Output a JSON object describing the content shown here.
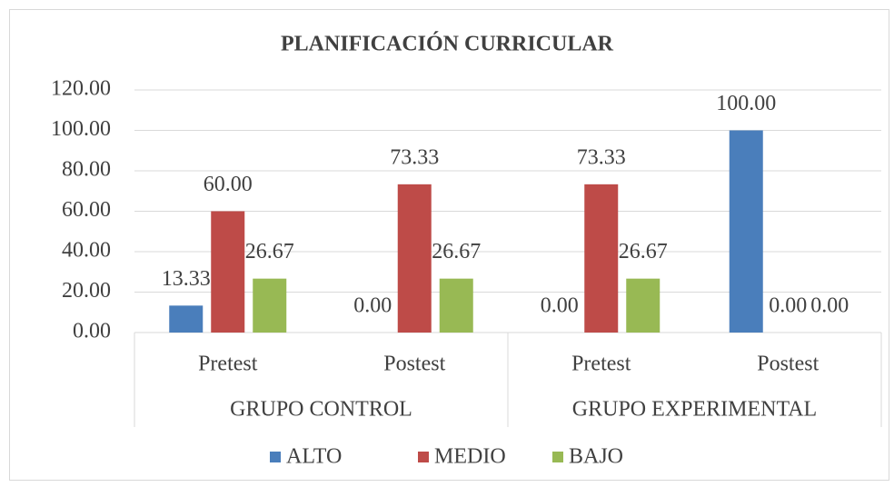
{
  "chart_data": {
    "type": "bar",
    "title": "PLANIFICACIÓN CURRICULAR",
    "categories": [
      "Pretest",
      "Postest",
      "Pretest",
      "Postest"
    ],
    "groups": [
      "GRUPO CONTROL",
      "GRUPO EXPERIMENTAL"
    ],
    "series": [
      {
        "name": "ALTO",
        "color": "#4a7ebb",
        "values": [
          13.33,
          0,
          0,
          100
        ],
        "value_labels": [
          "13.33",
          "0.00",
          "0.00",
          "100.00"
        ]
      },
      {
        "name": "MEDIO",
        "color": "#be4b48",
        "values": [
          60,
          73.33,
          73.33,
          0
        ],
        "value_labels": [
          "60.00",
          "73.33",
          "73.33",
          "0.00"
        ]
      },
      {
        "name": "BAJO",
        "color": "#98b954",
        "values": [
          26.67,
          26.67,
          26.67,
          0
        ],
        "value_labels": [
          "26.67",
          "26.67",
          "26.67",
          "0.00"
        ]
      }
    ],
    "ylim": [
      0,
      120
    ],
    "yticks": [
      {
        "value": 0,
        "label": "0.00"
      },
      {
        "value": 20,
        "label": "20.00"
      },
      {
        "value": 40,
        "label": "40.00"
      },
      {
        "value": 60,
        "label": "60.00"
      },
      {
        "value": 80,
        "label": "80.00"
      },
      {
        "value": 100,
        "label": "100.00"
      },
      {
        "value": 120,
        "label": "120.00"
      }
    ],
    "grid": true,
    "legend": "bottom"
  }
}
